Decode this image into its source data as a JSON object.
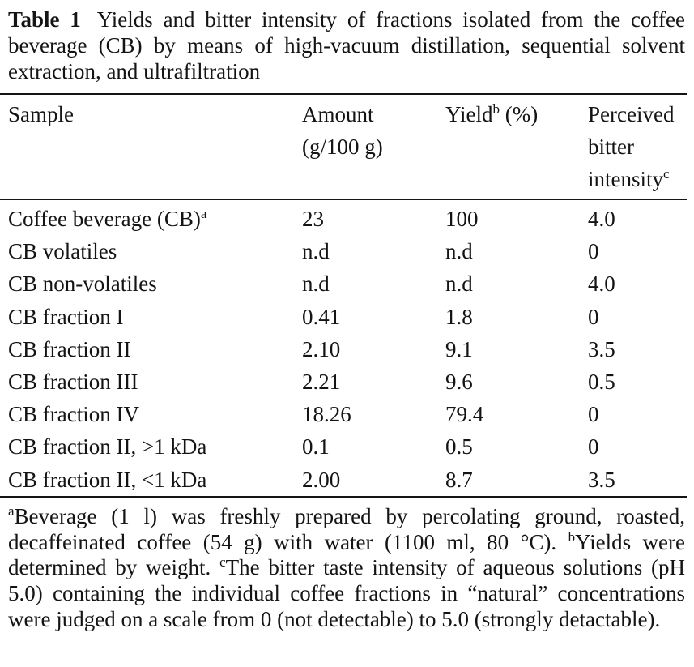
{
  "caption": {
    "label": "Table 1",
    "text": "Yields and bitter intensity of fractions isolated from the coffee beverage (CB) by means of high-vacuum distillation, sequential solvent extraction, and ultrafiltration"
  },
  "header": {
    "sample": "Sample",
    "amount_line1": "Amount",
    "amount_line2": "(g/100 g)",
    "yield_label": "Yield",
    "yield_sup": "b",
    "yield_unit": "(%)",
    "bitter_line1": "Perceived",
    "bitter_line2": "bitter",
    "bitter_line3": "intensity",
    "bitter_sup": "c"
  },
  "rows": [
    {
      "sample": "Coffee beverage (CB)",
      "sup": "a",
      "amount": "23",
      "yield": "100",
      "bitter": "4.0"
    },
    {
      "sample": "CB volatiles",
      "sup": "",
      "amount": "n.d",
      "yield": "n.d",
      "bitter": "0"
    },
    {
      "sample": "CB non-volatiles",
      "sup": "",
      "amount": "n.d",
      "yield": "n.d",
      "bitter": "4.0"
    },
    {
      "sample": "CB fraction I",
      "sup": "",
      "amount": "0.41",
      "yield": "1.8",
      "bitter": "0"
    },
    {
      "sample": "CB fraction II",
      "sup": "",
      "amount": "2.10",
      "yield": "9.1",
      "bitter": "3.5"
    },
    {
      "sample": "CB fraction III",
      "sup": "",
      "amount": "2.21",
      "yield": "9.6",
      "bitter": "0.5"
    },
    {
      "sample": "CB fraction IV",
      "sup": "",
      "amount": "18.26",
      "yield": "79.4",
      "bitter": "0"
    },
    {
      "sample": "CB fraction II, >1 kDa",
      "sup": "",
      "amount": "0.1",
      "yield": "0.5",
      "bitter": "0"
    },
    {
      "sample": "CB fraction II, <1 kDa",
      "sup": "",
      "amount": "2.00",
      "yield": "8.7",
      "bitter": "3.5"
    }
  ],
  "footnotes": {
    "a_mark": "a",
    "a_text": "Beverage (1 l) was freshly prepared by percolating ground, roasted, decaffeinated coffee (54 g) with water (1100 ml, 80 °C).",
    "b_mark": "b",
    "b_text": "Yields were determined by weight.",
    "c_mark": "c",
    "c_text": "The bitter taste intensity of aqueous solutions (pH 5.0) containing the individual coffee fractions in “natural” concentrations were judged on a scale from 0 (not detectable) to 5.0 (strongly detactable)."
  }
}
